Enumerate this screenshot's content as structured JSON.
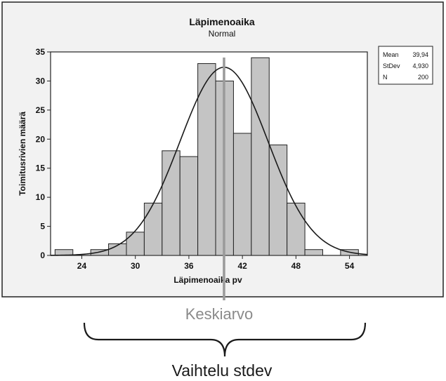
{
  "chart_data": {
    "type": "bar",
    "title": "Läpimenoaika",
    "subtitle": "Normal",
    "xlabel": "Läpimenoaika pv",
    "ylabel": "Toimitusrivien määrä",
    "xlim": [
      20.5,
      56
    ],
    "ylim": [
      0,
      35
    ],
    "xticks": [
      "24",
      "30",
      "36",
      "42",
      "48",
      "54"
    ],
    "yticks": [
      "0",
      "5",
      "10",
      "15",
      "20",
      "25",
      "30",
      "35"
    ],
    "bin_width": 2,
    "bins": [
      {
        "center": 22,
        "value": 1
      },
      {
        "center": 24,
        "value": 0
      },
      {
        "center": 26,
        "value": 1
      },
      {
        "center": 28,
        "value": 2
      },
      {
        "center": 30,
        "value": 4
      },
      {
        "center": 32,
        "value": 9
      },
      {
        "center": 34,
        "value": 18
      },
      {
        "center": 36,
        "value": 17
      },
      {
        "center": 38,
        "value": 33
      },
      {
        "center": 40,
        "value": 30
      },
      {
        "center": 42,
        "value": 21
      },
      {
        "center": 44,
        "value": 34
      },
      {
        "center": 46,
        "value": 19
      },
      {
        "center": 48,
        "value": 9
      },
      {
        "center": 50,
        "value": 1
      },
      {
        "center": 52,
        "value": 0
      },
      {
        "center": 54,
        "value": 1
      }
    ],
    "normal_fit": {
      "mean": 39.94,
      "stdev": 4.93,
      "n": 200
    },
    "mean_line": 39.94,
    "legend": {
      "position": "top-right",
      "rows": [
        {
          "label": "Mean",
          "value": "39,94"
        },
        {
          "label": "StDev",
          "value": "4,930"
        },
        {
          "label": "N",
          "value": "200"
        }
      ]
    }
  },
  "annotations": {
    "mean_label": "Keskiarvo",
    "spread_label": "Vaihtelu stdev"
  },
  "colors": {
    "bar_fill": "#c4c4c4",
    "bar_stroke": "#222222",
    "curve": "#1a1a1a",
    "mean_line": "#9a9a9a",
    "frame_bg": "#f2f2f2",
    "plot_bg": "#ffffff"
  }
}
